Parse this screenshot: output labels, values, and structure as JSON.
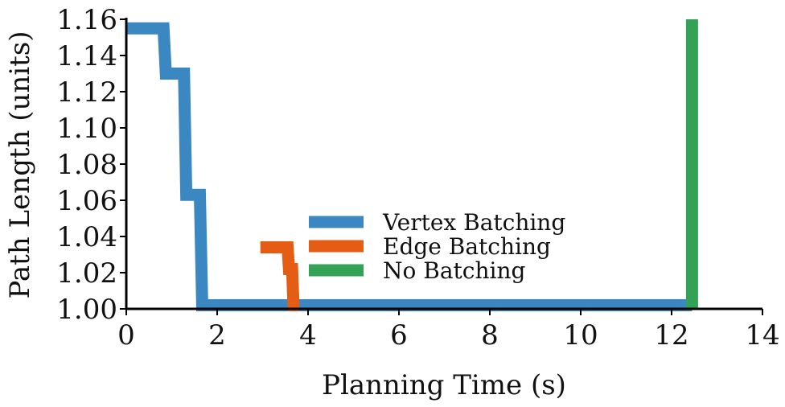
{
  "chart_data": {
    "type": "line",
    "xlabel": "Planning Time (s)",
    "ylabel": "Path Length (units)",
    "xlim": [
      0,
      14
    ],
    "ylim": [
      1.0,
      1.16
    ],
    "x_ticks": [
      "0",
      "2",
      "4",
      "6",
      "8",
      "10",
      "12",
      "14"
    ],
    "y_ticks": [
      "1.00",
      "1.02",
      "1.04",
      "1.06",
      "1.08",
      "1.10",
      "1.12",
      "1.14",
      "1.16"
    ],
    "grid": false,
    "legend_position": "center",
    "series": [
      {
        "name": "Vertex Batching",
        "color": "#3a87c2",
        "x": [
          0.0,
          0.82,
          0.87,
          1.27,
          1.32,
          1.62,
          1.67,
          12.45
        ],
        "y": [
          1.155,
          1.155,
          1.13,
          1.13,
          1.063,
          1.063,
          1.002,
          1.002
        ]
      },
      {
        "name": "Edge Batching",
        "color": "#e55c14",
        "x": [
          2.95,
          3.55,
          3.58,
          3.65,
          3.68,
          3.8
        ],
        "y": [
          1.034,
          1.034,
          1.022,
          1.022,
          1.002,
          1.002
        ]
      },
      {
        "name": "No Batching",
        "color": "#32a356",
        "x": [
          12.45,
          12.45
        ],
        "y": [
          1.0,
          1.16
        ]
      }
    ]
  }
}
